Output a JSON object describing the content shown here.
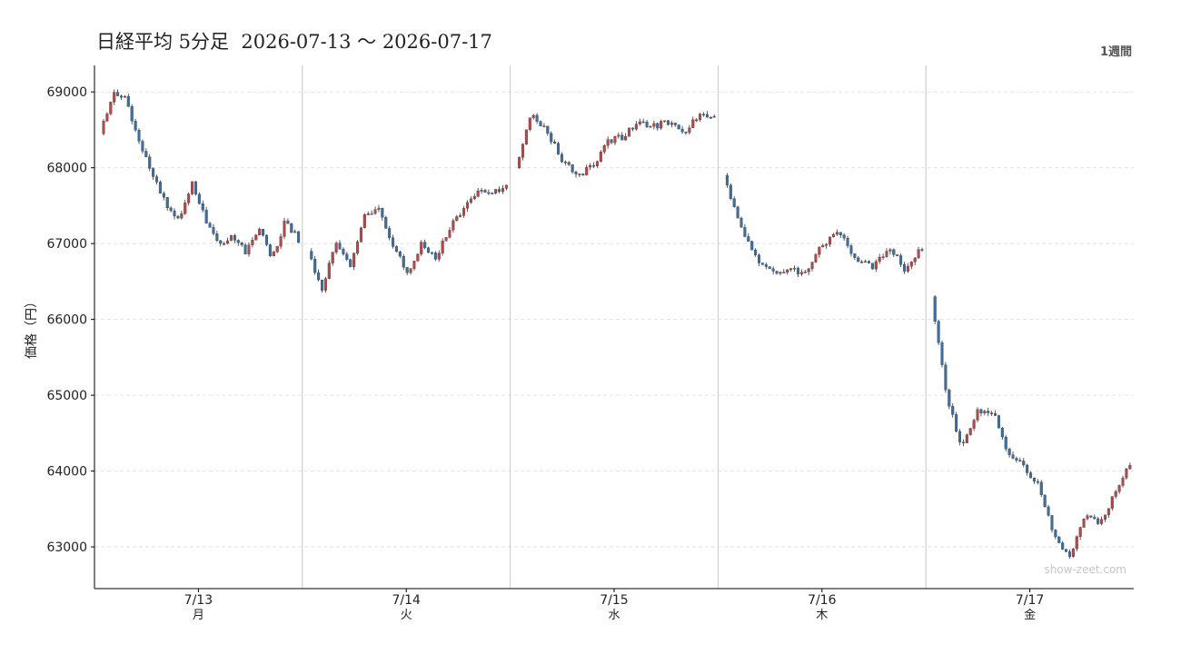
{
  "header": {
    "title": "日経平均 5分足  2026-07-13 〜 2026-07-17",
    "range_label": "1週間"
  },
  "watermark": "show-zeet.com",
  "colors": {
    "up": "#b5484a",
    "down": "#3a6f9f",
    "wick": "#333333",
    "grid": "#dddddd",
    "separator": "#c8c8c8"
  },
  "chart_data": {
    "type": "candlestick",
    "ylabel": "価格（円）",
    "ylim": [
      62450,
      69350
    ],
    "yticks": [
      63000,
      64000,
      65000,
      66000,
      67000,
      68000,
      69000
    ],
    "grid": true,
    "days": [
      {
        "date": "7/13",
        "weekday": "月",
        "path": [
          68450,
          69000,
          68900,
          68300,
          67900,
          67500,
          67300,
          67800,
          67300,
          67000,
          67100,
          66900,
          67200,
          66800,
          67300,
          67050
        ]
      },
      {
        "date": "7/14",
        "weekday": "火",
        "path": [
          66900,
          66400,
          67000,
          66700,
          67400,
          67450,
          67000,
          66600,
          67000,
          66800,
          67200,
          67450,
          67700,
          67650,
          67750
        ]
      },
      {
        "date": "7/15",
        "weekday": "水",
        "path": [
          68000,
          68700,
          68500,
          68100,
          67900,
          68000,
          68350,
          68400,
          68600,
          68550,
          68600,
          68450,
          68700,
          68650
        ]
      },
      {
        "date": "7/16",
        "weekday": "木",
        "path": [
          67900,
          67200,
          66800,
          66600,
          66650,
          66600,
          67000,
          67150,
          66750,
          66700,
          66950,
          66650,
          66950
        ]
      },
      {
        "date": "7/17",
        "weekday": "金",
        "path": [
          66300,
          65000,
          64300,
          64800,
          64800,
          64200,
          64100,
          63800,
          63200,
          62850,
          63400,
          63300,
          63700,
          64100
        ]
      }
    ]
  }
}
